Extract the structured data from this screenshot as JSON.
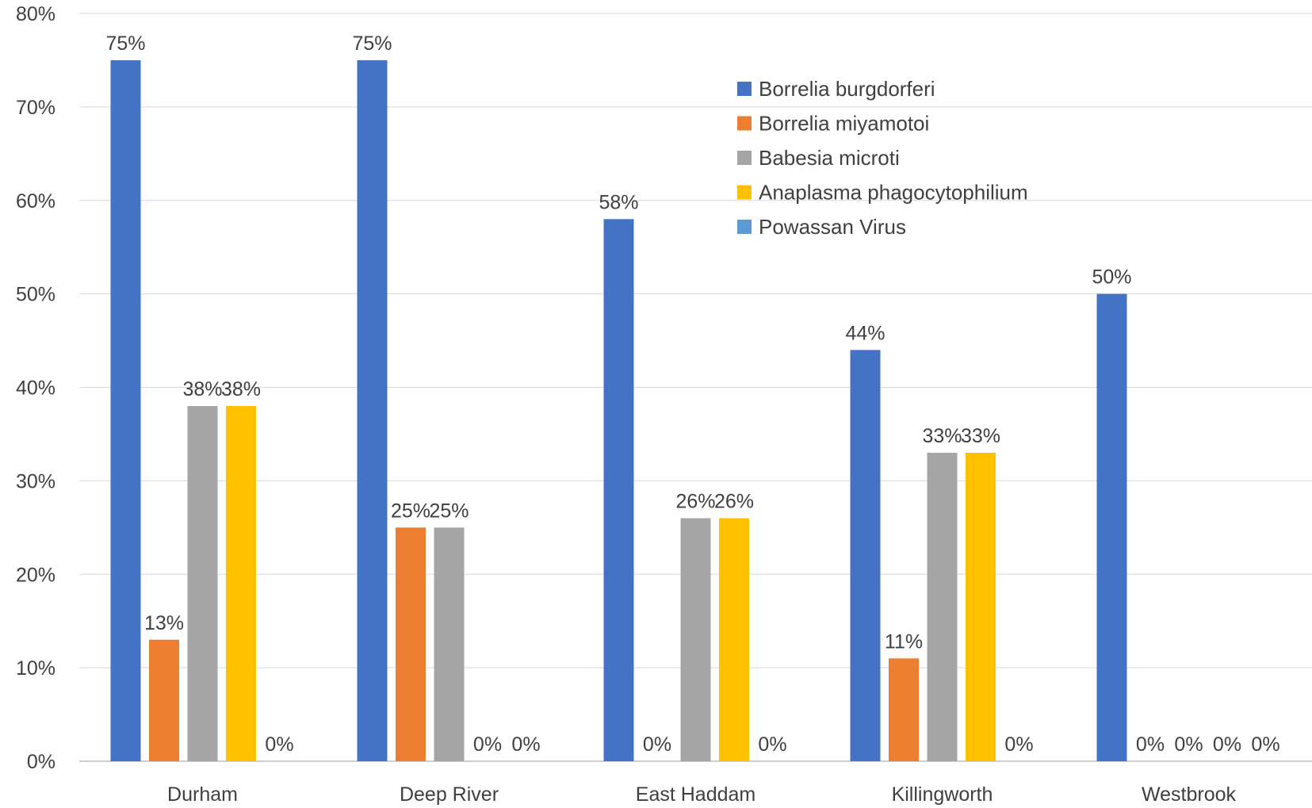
{
  "chart_data": {
    "type": "bar",
    "title": "",
    "xlabel": "",
    "ylabel": "",
    "ylim": [
      0,
      80
    ],
    "y_ticks": [
      0,
      10,
      20,
      30,
      40,
      50,
      60,
      70,
      80
    ],
    "y_tick_format": "percent",
    "grid": true,
    "legend_position": "top-right",
    "categories": [
      "Durham",
      "Deep River",
      "East Haddam",
      "Killingworth",
      "Westbrook"
    ],
    "series": [
      {
        "name": "Borrelia burgdorferi",
        "color": "#4472C4",
        "values": [
          75,
          75,
          58,
          44,
          50
        ]
      },
      {
        "name": "Borrelia miyamotoi",
        "color": "#ED7D31",
        "values": [
          13,
          25,
          0,
          11,
          0
        ]
      },
      {
        "name": "Babesia microti",
        "color": "#A5A5A5",
        "values": [
          38,
          25,
          26,
          33,
          0
        ]
      },
      {
        "name": "Anaplasma phagocytophilium",
        "color": "#FFC000",
        "values": [
          38,
          0,
          26,
          33,
          0
        ]
      },
      {
        "name": "Powassan Virus",
        "color": "#5B9BD5",
        "values": [
          0,
          0,
          0,
          0,
          0
        ]
      }
    ],
    "data_labels": [
      [
        "75%",
        "13%",
        "38%",
        "38%",
        "0%"
      ],
      [
        "75%",
        "25%",
        "25%",
        "0%",
        "0%"
      ],
      [
        "58%",
        "0%",
        "26%",
        "26%",
        "0%"
      ],
      [
        "44%",
        "11%",
        "33%",
        "33%",
        "0%"
      ],
      [
        "50%",
        "0%",
        "0%",
        "0%",
        "0%"
      ]
    ]
  }
}
